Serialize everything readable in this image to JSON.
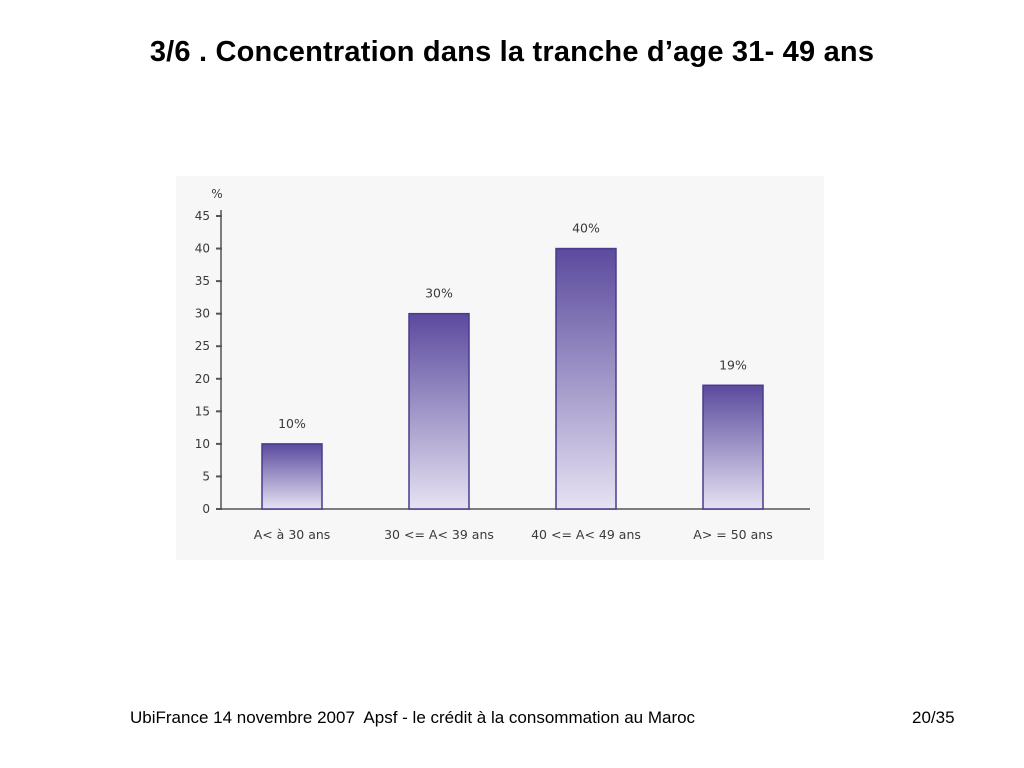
{
  "slide": {
    "title": "3/6 . Concentration dans la tranche d’age 31- 49 ans",
    "footer": "UbiFrance 14 novembre 2007  Apsf - le crédit à la consommation au Maroc",
    "page": "20/35"
  },
  "chart_data": {
    "type": "bar",
    "title": "",
    "xlabel": "",
    "ylabel": "%",
    "categories": [
      "A< à 30 ans",
      "30 <= A< 39 ans",
      "40 <= A< 49 ans",
      "A> = 50 ans"
    ],
    "values": [
      10,
      30,
      40,
      19
    ],
    "data_labels": [
      "10%",
      "30%",
      "40%",
      "19%"
    ],
    "ylim": [
      0,
      45
    ],
    "yticks": [
      0,
      5,
      10,
      15,
      20,
      25,
      30,
      35,
      40,
      45
    ],
    "grid": false,
    "legend": "none",
    "colors": {
      "bar_top": "#5b4a9e",
      "bar_bottom": "#e6e2f2",
      "bar_edge": "#4a3b8c",
      "axis": "#555555"
    }
  }
}
